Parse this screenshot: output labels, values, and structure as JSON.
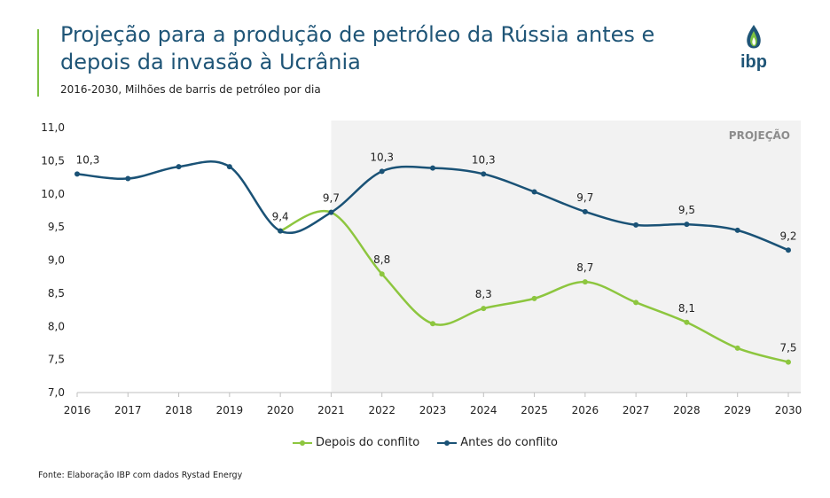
{
  "header": {
    "title": "Projeção para a produção de petróleo da Rússia antes e depois da invasão à Ucrânia",
    "subtitle": "2016-2030, Milhões de barris de petróleo por dia"
  },
  "logo": {
    "text": "ibp",
    "icon": "oil-drop-flame-icon"
  },
  "colors": {
    "accent": "#7cc142",
    "brand": "#1f5577",
    "projection_bg": "#f2f2f2"
  },
  "chart_data": {
    "type": "line",
    "x": [
      2016,
      2017,
      2018,
      2019,
      2020,
      2021,
      2022,
      2023,
      2024,
      2025,
      2026,
      2027,
      2028,
      2029,
      2030
    ],
    "ylim": [
      7.0,
      11.0
    ],
    "yticks": [
      "7,0",
      "7,5",
      "8,0",
      "8,5",
      "9,0",
      "9,5",
      "10,0",
      "10,5",
      "11,0"
    ],
    "ytick_values": [
      7.0,
      7.5,
      8.0,
      8.5,
      9.0,
      9.5,
      10.0,
      10.5,
      11.0
    ],
    "projection_label": "PROJEÇÃO",
    "projection_start": 2021,
    "legend_position": "bottom",
    "series": [
      {
        "name": "Depois do conflito",
        "color": "#8dc63f",
        "x": [
          2020,
          2021,
          2022,
          2023,
          2024,
          2025,
          2026,
          2027,
          2028,
          2029,
          2030
        ],
        "values": [
          9.44,
          9.72,
          8.79,
          8.04,
          8.27,
          8.42,
          8.67,
          8.36,
          8.06,
          7.67,
          7.46
        ],
        "labels": [
          null,
          null,
          "8,8",
          null,
          "8,3",
          null,
          "8,7",
          null,
          "8,1",
          null,
          "7,5"
        ]
      },
      {
        "name": "Antes do conflito",
        "color": "#1a5276",
        "x": [
          2016,
          2017,
          2018,
          2019,
          2020,
          2021,
          2022,
          2023,
          2024,
          2025,
          2026,
          2027,
          2028,
          2029,
          2030
        ],
        "values": [
          10.3,
          10.23,
          10.41,
          10.41,
          9.44,
          9.72,
          10.34,
          10.39,
          10.3,
          10.03,
          9.73,
          9.53,
          9.54,
          9.45,
          9.15
        ],
        "labels": [
          "10,3",
          null,
          null,
          null,
          "9,4",
          "9,7",
          "10,3",
          null,
          "10,3",
          null,
          "9,7",
          null,
          "9,5",
          null,
          "9,2"
        ]
      }
    ]
  },
  "source": "Fonte: Elaboração IBP com dados Rystad Energy"
}
